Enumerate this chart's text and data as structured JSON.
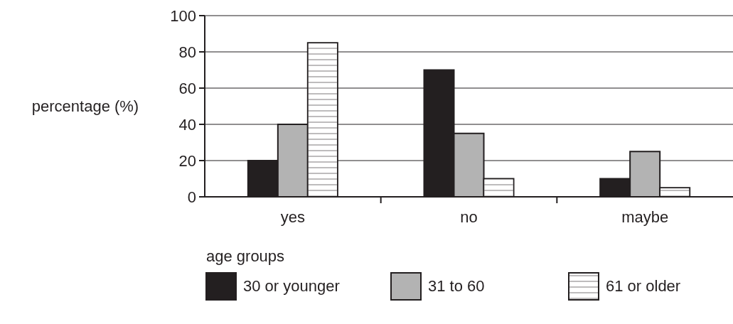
{
  "chart_data": {
    "type": "bar",
    "ylabel": "percentage (%)",
    "legend_title": "age groups",
    "categories": [
      "yes",
      "no",
      "maybe"
    ],
    "series": [
      {
        "name": "30 or younger",
        "color": "#231f20",
        "values": [
          20,
          70,
          10
        ]
      },
      {
        "name": "31 to 60",
        "color": "#b3b3b3",
        "values": [
          40,
          35,
          25
        ]
      },
      {
        "name": "61 or older",
        "color": "#ffffff",
        "values": [
          85,
          10,
          5
        ]
      }
    ],
    "ylim": [
      0,
      100
    ],
    "yticks": [
      0,
      20,
      40,
      60,
      80,
      100
    ],
    "grid": "y",
    "legend": "bottom"
  }
}
